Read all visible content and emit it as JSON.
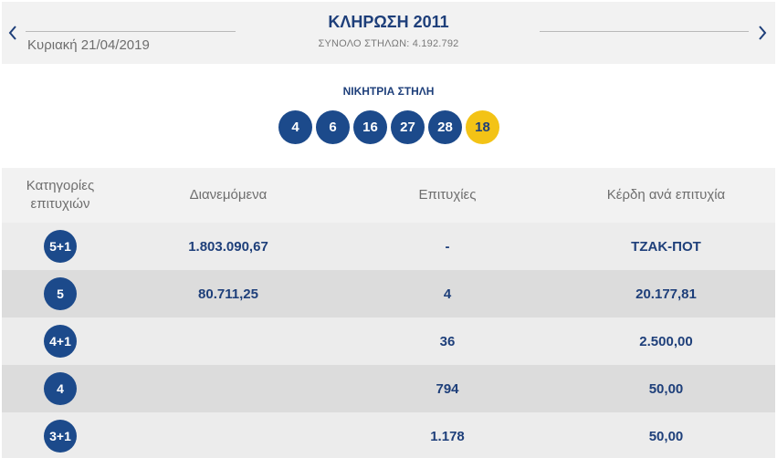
{
  "header": {
    "title": "ΚΛΗΡΩΣΗ 2011",
    "date": "Κυριακή 21/04/2019",
    "total_columns": "ΣΥΝΟΛΟ ΣΤΗΛΩΝ: 4.192.792",
    "prev_icon": "chevron-left-icon",
    "next_icon": "chevron-right-icon"
  },
  "winning": {
    "title": "ΝΙΚΗΤΡΙΑ ΣΤΗΛΗ",
    "numbers": [
      "4",
      "6",
      "16",
      "27",
      "28"
    ],
    "joker": "18"
  },
  "table": {
    "headers": {
      "category_line1": "Κατηγορίες",
      "category_line2": "επιτυχιών",
      "distributed": "Διανεμόμενα",
      "winners": "Επιτυχίες",
      "prize": "Κέρδη ανά επιτυχία"
    },
    "rows": [
      {
        "category": "5+1",
        "distributed": "1.803.090,67",
        "winners": "-",
        "prize": "ΤΖΑΚ-ΠΟΤ"
      },
      {
        "category": "5",
        "distributed": "80.711,25",
        "winners": "4",
        "prize": "20.177,81"
      },
      {
        "category": "4+1",
        "distributed": "",
        "winners": "36",
        "prize": "2.500,00"
      },
      {
        "category": "4",
        "distributed": "",
        "winners": "794",
        "prize": "50,00"
      },
      {
        "category": "3+1",
        "distributed": "",
        "winners": "1.178",
        "prize": "50,00"
      }
    ]
  },
  "colors": {
    "navy": "#1c4a8b",
    "joker_yellow": "#f3c316",
    "row_light": "#ececec",
    "row_dark": "#dcdcdc"
  }
}
